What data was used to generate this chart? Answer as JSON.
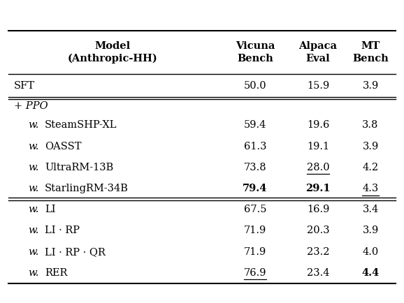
{
  "col_headers": [
    "Model\n(Anthropic-HH)",
    "Vicuna\nBench",
    "Alpaca\nEval",
    "MT\nBench"
  ],
  "rows": [
    {
      "group": "sft",
      "label": "SFT",
      "label_italic": false,
      "label_w_italic": false,
      "values": [
        "50.0",
        "15.9",
        "3.9"
      ],
      "bold": [
        false,
        false,
        false
      ],
      "underline": [
        false,
        false,
        false
      ]
    },
    {
      "group": "ppo_header",
      "label": "+ PPO",
      "label_italic": true,
      "label_w_italic": false,
      "values": [
        "",
        "",
        ""
      ],
      "bold": [
        false,
        false,
        false
      ],
      "underline": [
        false,
        false,
        false
      ]
    },
    {
      "group": "ppo",
      "label": "SteamSHP-XL",
      "label_italic": false,
      "label_w_italic": true,
      "values": [
        "59.4",
        "19.6",
        "3.8"
      ],
      "bold": [
        false,
        false,
        false
      ],
      "underline": [
        false,
        false,
        false
      ]
    },
    {
      "group": "ppo",
      "label": "OASST",
      "label_italic": false,
      "label_w_italic": true,
      "values": [
        "61.3",
        "19.1",
        "3.9"
      ],
      "bold": [
        false,
        false,
        false
      ],
      "underline": [
        false,
        false,
        false
      ]
    },
    {
      "group": "ppo",
      "label": "UltraRM-13B",
      "label_italic": false,
      "label_w_italic": true,
      "values": [
        "73.8",
        "28.0",
        "4.2"
      ],
      "bold": [
        false,
        false,
        false
      ],
      "underline": [
        false,
        true,
        false
      ]
    },
    {
      "group": "ppo",
      "label": "StarlingRM-34B",
      "label_italic": false,
      "label_w_italic": true,
      "values": [
        "79.4",
        "29.1",
        "4.3"
      ],
      "bold": [
        true,
        true,
        false
      ],
      "underline": [
        false,
        false,
        true
      ]
    },
    {
      "group": "rer",
      "label": "LI",
      "label_italic": false,
      "label_w_italic": true,
      "values": [
        "67.5",
        "16.9",
        "3.4"
      ],
      "bold": [
        false,
        false,
        false
      ],
      "underline": [
        false,
        false,
        false
      ]
    },
    {
      "group": "rer",
      "label": "LI · RP",
      "label_italic": false,
      "label_w_italic": true,
      "values": [
        "71.9",
        "20.3",
        "3.9"
      ],
      "bold": [
        false,
        false,
        false
      ],
      "underline": [
        false,
        false,
        false
      ]
    },
    {
      "group": "rer",
      "label": "LI · RP · QR",
      "label_italic": false,
      "label_w_italic": true,
      "values": [
        "71.9",
        "23.2",
        "4.0"
      ],
      "bold": [
        false,
        false,
        false
      ],
      "underline": [
        false,
        false,
        false
      ]
    },
    {
      "group": "rer",
      "label": "RER",
      "label_italic": false,
      "label_w_italic": true,
      "values": [
        "76.9",
        "23.4",
        "4.4"
      ],
      "bold": [
        false,
        false,
        true
      ],
      "underline": [
        true,
        false,
        false
      ]
    }
  ],
  "bg_color": "#ffffff",
  "text_color": "#000000",
  "font_size": 10.5,
  "header_font_size": 10.5,
  "figwidth": 5.78,
  "figheight": 4.34,
  "dpi": 100
}
